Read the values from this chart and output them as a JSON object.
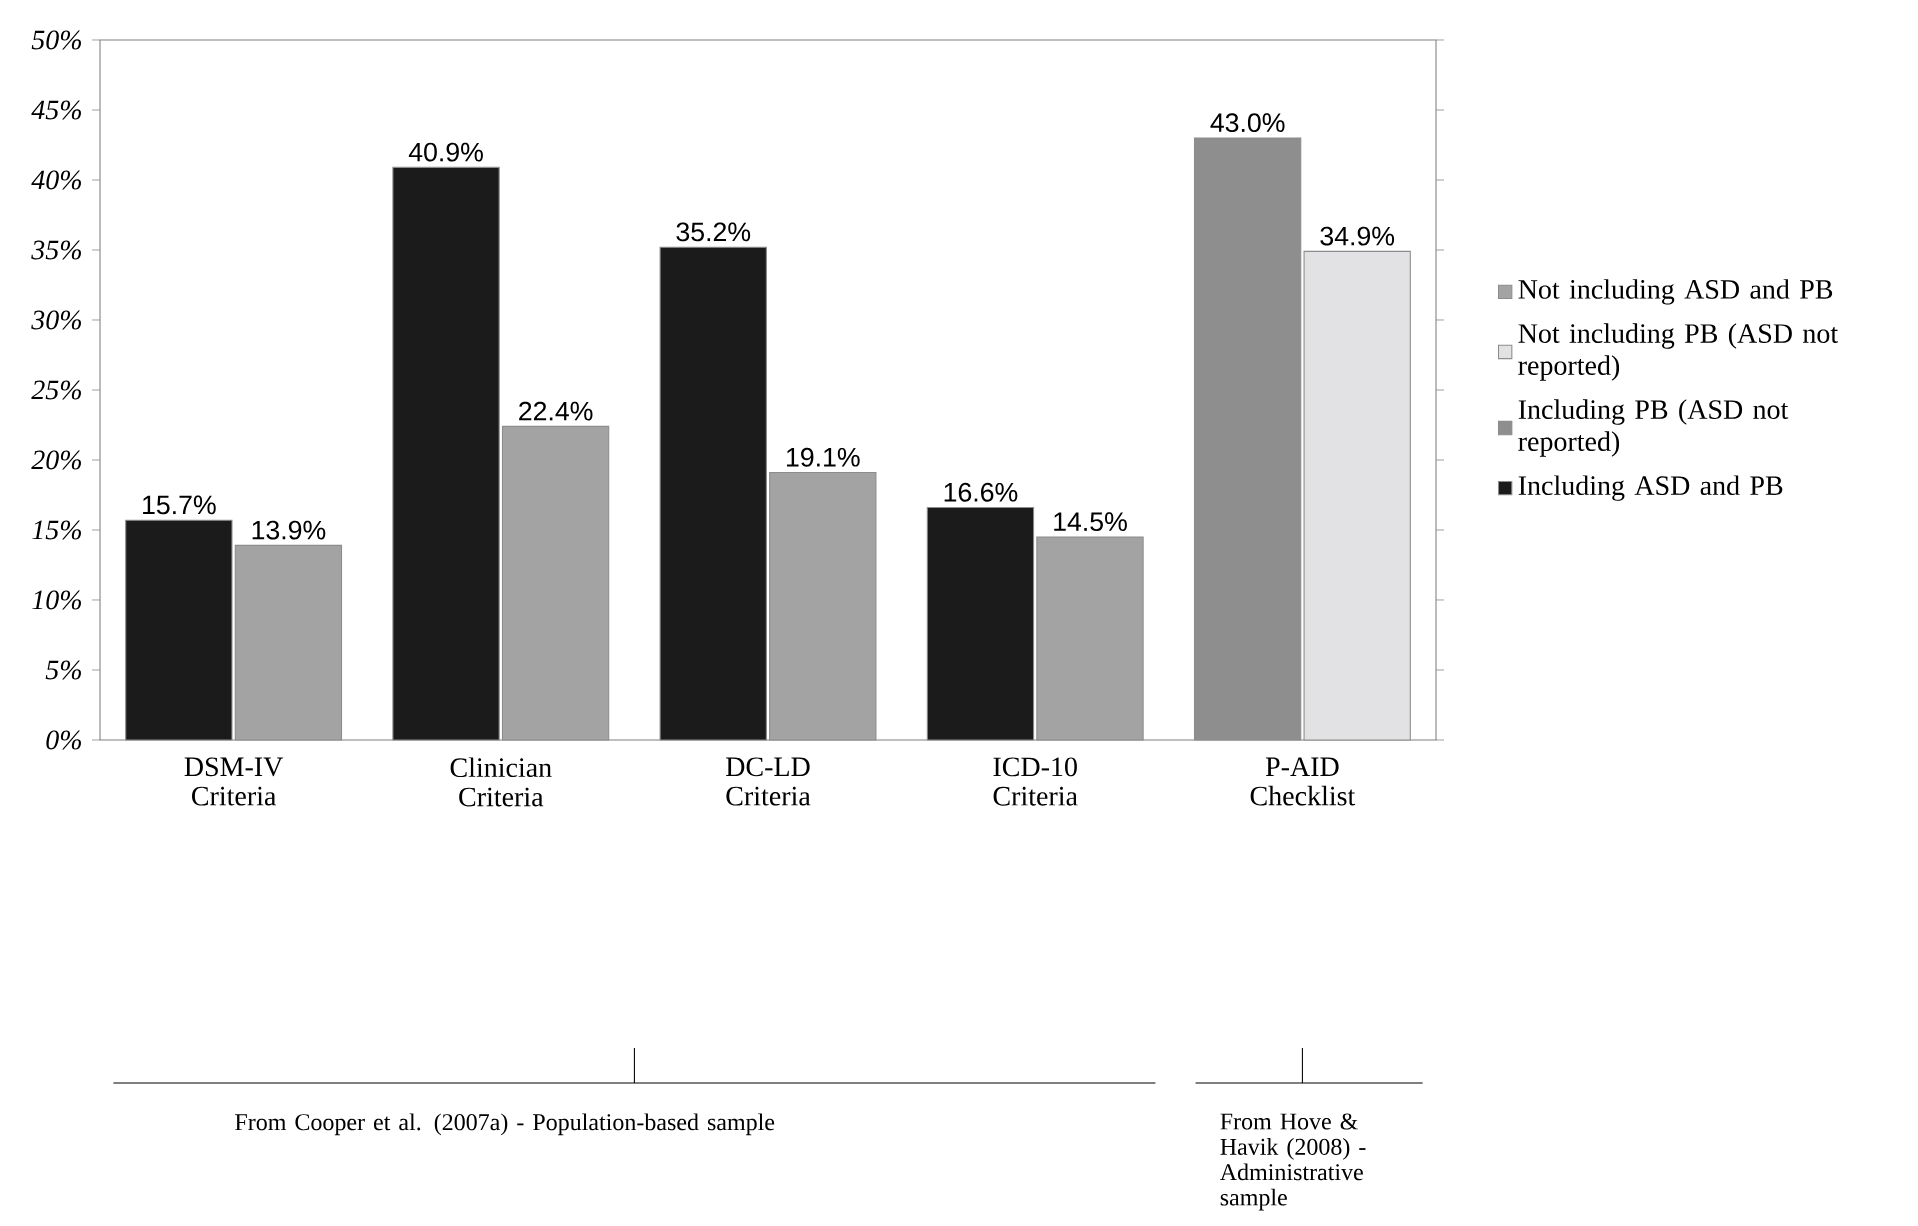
{
  "chart_data": {
    "type": "bar",
    "categories": [
      "DSM-IV Criteria",
      "Clinician Criteria",
      "DC-LD Criteria",
      "ICD-10 Criteria",
      "P-AID Checklist"
    ],
    "series": [
      {
        "name": "Not including ASD and PB",
        "color": "#a3a3a3",
        "values": [
          13.9,
          22.4,
          19.1,
          14.5,
          null
        ],
        "value_labels": [
          "13.9%",
          "22.4%",
          "19.1%",
          "14.5%",
          null
        ]
      },
      {
        "name": "Not including PB (ASD not reported)",
        "color": "#e2e2e4",
        "values": [
          null,
          null,
          null,
          null,
          34.9
        ],
        "value_labels": [
          null,
          null,
          null,
          null,
          "34.9%"
        ]
      },
      {
        "name": "Including PB (ASD not reported)",
        "color": "#8e8e8e",
        "values": [
          null,
          null,
          null,
          null,
          43.0
        ],
        "value_labels": [
          null,
          null,
          null,
          null,
          "43.0%"
        ]
      },
      {
        "name": "Including ASD and PB",
        "color": "#1b1b1b",
        "values": [
          15.7,
          40.9,
          35.2,
          16.6,
          null
        ],
        "value_labels": [
          "15.7%",
          "40.9%",
          "35.2%",
          "16.6%",
          null
        ]
      }
    ],
    "ylim": [
      0,
      50
    ],
    "yticks": [
      {
        "value": 0,
        "label": "0%"
      },
      {
        "value": 5,
        "label": "5%"
      },
      {
        "value": 10,
        "label": "10%"
      },
      {
        "value": 15,
        "label": "15%"
      },
      {
        "value": 20,
        "label": "20%"
      },
      {
        "value": 25,
        "label": "25%"
      },
      {
        "value": 30,
        "label": "30%"
      },
      {
        "value": 35,
        "label": "35%"
      },
      {
        "value": 40,
        "label": "40%"
      },
      {
        "value": 45,
        "label": "45%"
      },
      {
        "value": 50,
        "label": "50%"
      }
    ],
    "grid": false,
    "legend": "right",
    "annotations": [
      "From Cooper et al. (2007a) - Population-based sample",
      "From Hove & Havik (2008) - Administrative sample"
    ]
  }
}
